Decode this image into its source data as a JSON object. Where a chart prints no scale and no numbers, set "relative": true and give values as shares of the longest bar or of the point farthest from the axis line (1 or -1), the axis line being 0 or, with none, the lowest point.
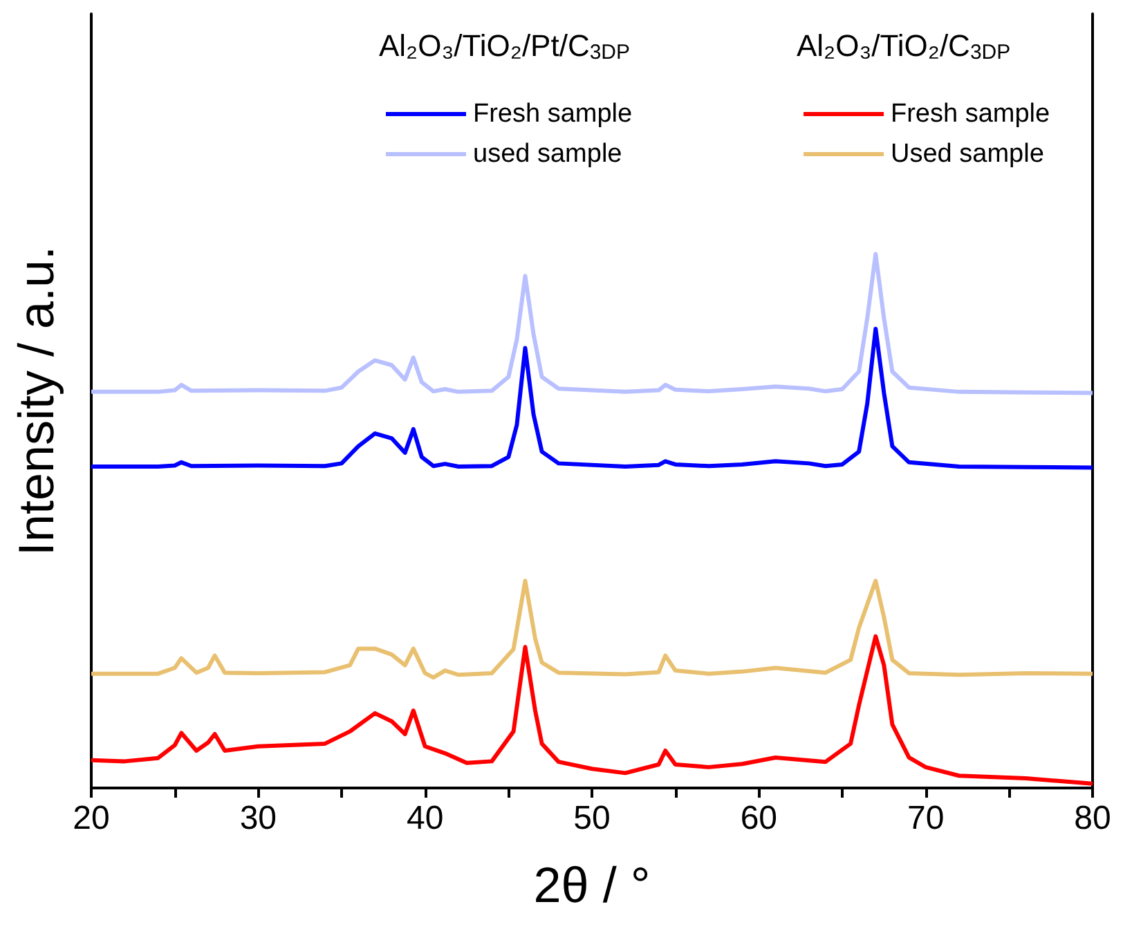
{
  "chart_data": {
    "type": "line",
    "relative": true,
    "xlabel": "2θ / °",
    "ylabel": "Intensity / a.u.",
    "xlim": [
      20,
      80
    ],
    "xticks": [
      20,
      {
        "value": 25,
        "label": null
      },
      30,
      {
        "value": 35,
        "label": null
      },
      40,
      {
        "value": 45,
        "label": null
      },
      50,
      {
        "value": 55,
        "label": null
      },
      60,
      {
        "value": 65,
        "label": null
      },
      70,
      {
        "value": 75,
        "label": null
      },
      80
    ],
    "legend": "top right",
    "grid": false,
    "marker": "none",
    "line_style": "solid",
    "annotations": [
      "Al₂O₃/TiO₂/Pt/C$_{3DP}$",
      "Al₂O₃/TiO₂/C$_{3DP}$"
    ],
    "series": [
      {
        "name": "Fresh sample",
        "color": "#0000ff",
        "x": [
          20,
          24,
          25,
          25.4,
          26,
          30,
          34,
          35,
          36,
          37,
          38,
          38.8,
          39.3,
          39.8,
          40.5,
          41.2,
          42,
          44,
          45,
          45.5,
          46,
          46.5,
          47,
          48,
          52,
          54,
          54.4,
          55,
          57,
          59,
          61,
          63,
          64,
          65,
          66,
          66.5,
          67,
          67.5,
          68,
          69,
          72,
          76,
          80
        ],
        "values": [
          0.602,
          0.602,
          0.604,
          0.61,
          0.603,
          0.604,
          0.603,
          0.608,
          0.64,
          0.664,
          0.655,
          0.628,
          0.672,
          0.62,
          0.603,
          0.607,
          0.602,
          0.603,
          0.62,
          0.68,
          0.824,
          0.7,
          0.63,
          0.608,
          0.602,
          0.605,
          0.612,
          0.606,
          0.603,
          0.606,
          0.612,
          0.608,
          0.603,
          0.606,
          0.63,
          0.72,
          0.86,
          0.74,
          0.64,
          0.61,
          0.602,
          0.601,
          0.6
        ]
      },
      {
        "name": "used sample",
        "color": "#b8c0ff",
        "x": [
          20,
          24,
          25,
          25.4,
          26,
          30,
          34,
          35,
          36,
          37,
          38,
          38.8,
          39.3,
          39.8,
          40.5,
          41.2,
          42,
          44,
          45,
          45.5,
          46,
          46.5,
          47,
          48,
          52,
          54,
          54.4,
          55,
          57,
          59,
          61,
          63,
          64,
          65,
          66,
          66.5,
          67,
          67.5,
          68,
          69,
          72,
          76,
          80
        ],
        "values": [
          0.742,
          0.742,
          0.745,
          0.755,
          0.744,
          0.745,
          0.744,
          0.75,
          0.78,
          0.801,
          0.792,
          0.765,
          0.806,
          0.76,
          0.743,
          0.747,
          0.742,
          0.744,
          0.77,
          0.84,
          0.959,
          0.85,
          0.77,
          0.748,
          0.742,
          0.745,
          0.755,
          0.746,
          0.743,
          0.747,
          0.752,
          0.748,
          0.743,
          0.747,
          0.78,
          0.88,
          1.0,
          0.88,
          0.78,
          0.75,
          0.742,
          0.741,
          0.74
        ]
      },
      {
        "name": "Fresh sample",
        "color": "#ff0000",
        "x": [
          20,
          22,
          24,
          25,
          25.4,
          26.3,
          27,
          27.4,
          28,
          30,
          34,
          35.5,
          37,
          38,
          38.8,
          39.3,
          40,
          41.2,
          42.5,
          44,
          45.3,
          46,
          46.6,
          47,
          48,
          50,
          52,
          54,
          54.4,
          55,
          57,
          59,
          61,
          64,
          65.5,
          66,
          67,
          67.5,
          68,
          69,
          70,
          72,
          76,
          80
        ],
        "values": [
          0.052,
          0.05,
          0.056,
          0.08,
          0.103,
          0.07,
          0.085,
          0.101,
          0.07,
          0.078,
          0.083,
          0.106,
          0.14,
          0.125,
          0.101,
          0.145,
          0.078,
          0.065,
          0.047,
          0.05,
          0.106,
          0.264,
          0.145,
          0.083,
          0.049,
          0.036,
          0.028,
          0.044,
          0.07,
          0.044,
          0.039,
          0.045,
          0.057,
          0.049,
          0.083,
          0.155,
          0.284,
          0.23,
          0.119,
          0.057,
          0.039,
          0.023,
          0.018,
          0.008
        ]
      },
      {
        "name": "Used sample",
        "color": "#e8c070",
        "x": [
          20,
          24,
          25,
          25.4,
          26.3,
          27,
          27.4,
          28,
          30,
          34,
          35.5,
          36,
          37,
          38,
          38.8,
          39.3,
          40,
          40.5,
          41.2,
          42,
          44,
          45.3,
          46,
          46.6,
          47,
          48,
          52,
          54,
          54.4,
          55,
          57,
          59,
          61,
          64,
          65.5,
          66,
          67,
          67.5,
          68,
          69,
          72,
          76,
          80
        ],
        "values": [
          0.214,
          0.214,
          0.225,
          0.243,
          0.216,
          0.225,
          0.248,
          0.216,
          0.215,
          0.217,
          0.23,
          0.261,
          0.261,
          0.25,
          0.23,
          0.261,
          0.215,
          0.207,
          0.22,
          0.212,
          0.215,
          0.26,
          0.388,
          0.28,
          0.235,
          0.216,
          0.213,
          0.217,
          0.248,
          0.22,
          0.214,
          0.218,
          0.225,
          0.216,
          0.24,
          0.3,
          0.388,
          0.32,
          0.24,
          0.215,
          0.212,
          0.215,
          0.214
        ]
      }
    ]
  }
}
